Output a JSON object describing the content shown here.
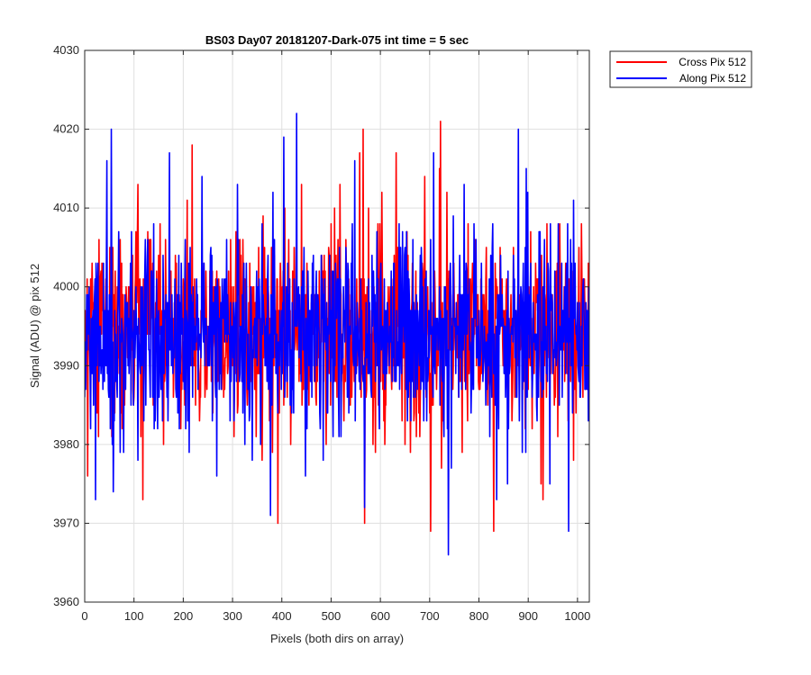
{
  "chart_data": {
    "type": "line",
    "title": "BS03 Day07 20181207-Dark-075 int time = 5 sec",
    "xlabel": "Pixels (both dirs on array)",
    "ylabel": "Signal (ADU) @ pix 512",
    "xlim": [
      0,
      1024
    ],
    "ylim": [
      3960,
      4030
    ],
    "xticks": [
      0,
      100,
      200,
      300,
      400,
      500,
      600,
      700,
      800,
      900,
      1000
    ],
    "yticks": [
      3960,
      3970,
      3980,
      3990,
      4000,
      4010,
      4020,
      4030
    ],
    "grid": true,
    "legend": {
      "position": "outside-top-right"
    },
    "noise_model": {
      "points_per_series": 1024,
      "mean": 3994,
      "std": 6
    },
    "series": [
      {
        "name": "Cross Pix 512",
        "color": "#ff0000",
        "stroke_order": 0,
        "notable_points": [
          [
            6,
            3976
          ],
          [
            28,
            3981
          ],
          [
            55,
            3981
          ],
          [
            108,
            4013
          ],
          [
            118,
            3973
          ],
          [
            158,
            3983
          ],
          [
            185,
            3987
          ],
          [
            218,
            4018
          ],
          [
            246,
            4002
          ],
          [
            268,
            4002
          ],
          [
            300,
            3990
          ],
          [
            332,
            3991
          ],
          [
            392,
            3970
          ],
          [
            420,
            3989
          ],
          [
            440,
            4013
          ],
          [
            466,
            3988
          ],
          [
            500,
            4008
          ],
          [
            518,
            4013
          ],
          [
            558,
            4017
          ],
          [
            565,
            4020
          ],
          [
            568,
            3970
          ],
          [
            590,
            3979
          ],
          [
            632,
            4017
          ],
          [
            650,
            3980
          ],
          [
            690,
            4014
          ],
          [
            702,
            3969
          ],
          [
            720,
            4015
          ],
          [
            722,
            4021
          ],
          [
            746,
            3996
          ],
          [
            800,
            3987
          ],
          [
            830,
            3969
          ],
          [
            843,
            4005
          ],
          [
            880,
            3990
          ],
          [
            930,
            3973
          ],
          [
            955,
            3986
          ],
          [
            976,
            4003
          ],
          [
            992,
            3978
          ],
          [
            1008,
            4008
          ]
        ]
      },
      {
        "name": "Along Pix 512",
        "color": "#0000ff",
        "stroke_order": 1,
        "notable_points": [
          [
            22,
            3973
          ],
          [
            45,
            4016
          ],
          [
            54,
            4020
          ],
          [
            58,
            3974
          ],
          [
            72,
            3979
          ],
          [
            108,
            3978
          ],
          [
            122,
            4002
          ],
          [
            140,
            4008
          ],
          [
            186,
            3986
          ],
          [
            212,
            3979
          ],
          [
            238,
            4014
          ],
          [
            268,
            3976
          ],
          [
            310,
            4013
          ],
          [
            340,
            3978
          ],
          [
            377,
            3971
          ],
          [
            392,
            3984
          ],
          [
            404,
            4019
          ],
          [
            430,
            4022
          ],
          [
            450,
            3989
          ],
          [
            484,
            3978
          ],
          [
            530,
            4005
          ],
          [
            548,
            4016
          ],
          [
            568,
            3972
          ],
          [
            600,
            4001
          ],
          [
            660,
            3988
          ],
          [
            708,
            4017
          ],
          [
            738,
            3966
          ],
          [
            770,
            4013
          ],
          [
            820,
            3992
          ],
          [
            880,
            4020
          ],
          [
            920,
            3991
          ],
          [
            944,
            3975
          ],
          [
            965,
            3994
          ],
          [
            982,
            3969
          ],
          [
            992,
            4011
          ],
          [
            1020,
            3997
          ]
        ]
      }
    ]
  }
}
